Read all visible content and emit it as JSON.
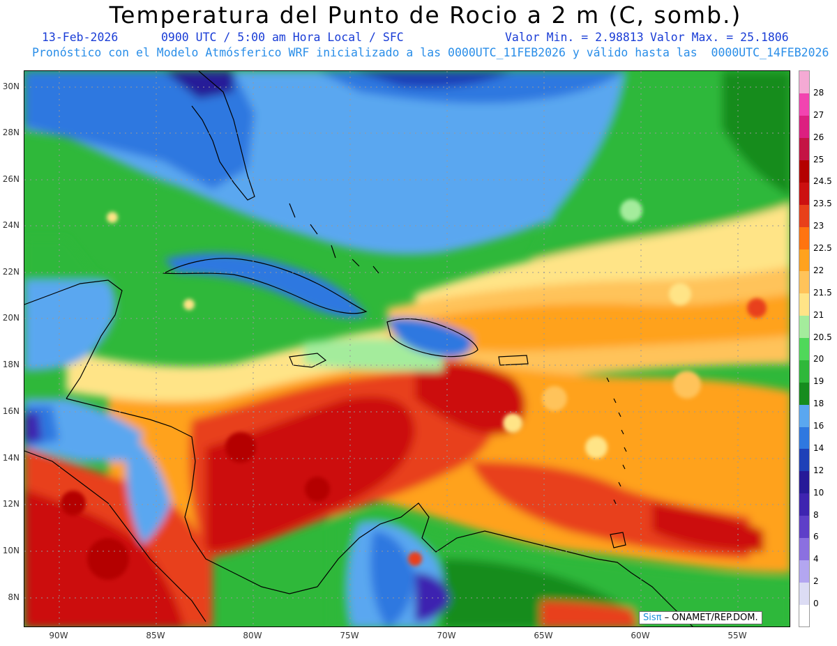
{
  "header": {
    "title": "Temperatura del Punto de Rocio a 2 m (C, somb.)",
    "date": "13-Feb-2026",
    "time": "0900 UTC / 5:00 am Hora Local / SFC",
    "valor_min": "Valor Min. = 2.98813",
    "valor_max": "Valor Max. = 25.1806",
    "description": "Pronóstico con el Modelo Atmósferico WRF inicializado a las 0000UTC_11FEB2026 y válido hasta las  0000UTC_14FEB2026"
  },
  "map": {
    "lat_labels": [
      "30N",
      "28N",
      "26N",
      "24N",
      "22N",
      "20N",
      "18N",
      "16N",
      "14N",
      "12N",
      "10N",
      "8N"
    ],
    "lon_labels": [
      "90W",
      "85W",
      "80W",
      "75W",
      "70W",
      "65W",
      "60W",
      "55W"
    ]
  },
  "colorbar": {
    "levels": [
      "0",
      "2",
      "4",
      "6",
      "8",
      "10",
      "12",
      "14",
      "16",
      "18",
      "19",
      "20",
      "20.5",
      "21",
      "21.5",
      "22",
      "22.5",
      "23",
      "23.5",
      "24.5",
      "25",
      "26",
      "27",
      "28"
    ],
    "colors": [
      "#ffffff",
      "#dcdcf4",
      "#b3a6f0",
      "#8b70e0",
      "#5e3fc8",
      "#3e24b0",
      "#261a98",
      "#1e40b8",
      "#2f78e0",
      "#5aa7f0",
      "#168c1e",
      "#2fb83a",
      "#4fd85a",
      "#a4ec9c",
      "#ffe487",
      "#ffc35a",
      "#ffa21e",
      "#ff7410",
      "#e8401a",
      "#cc1010",
      "#b40000",
      "#c41444",
      "#dc2080",
      "#f244b0",
      "#f4aad4"
    ]
  },
  "credit": {
    "logo": "Sisπ",
    "text": "– ONAMET/REP.DOM."
  }
}
